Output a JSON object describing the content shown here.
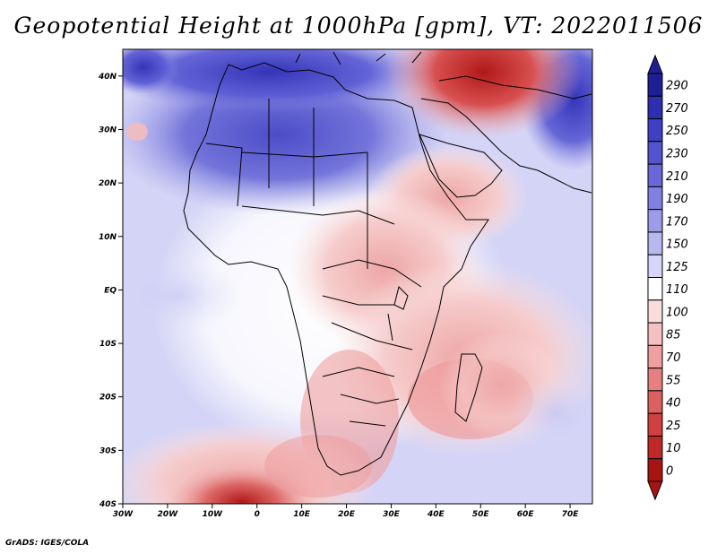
{
  "title": "Geopotential Height at 1000hPa [gpm], VT: 2022011506",
  "credit": "GrADS: IGES/COLA",
  "map": {
    "extent": {
      "lon_min": -30,
      "lon_max": 75,
      "lat_min": -40,
      "lat_max": 45
    },
    "lat_ticks": [
      {
        "value": 40,
        "label": "40N"
      },
      {
        "value": 30,
        "label": "30N"
      },
      {
        "value": 20,
        "label": "20N"
      },
      {
        "value": 10,
        "label": "10N"
      },
      {
        "value": 0,
        "label": "EQ"
      },
      {
        "value": -10,
        "label": "10S"
      },
      {
        "value": -20,
        "label": "20S"
      },
      {
        "value": -30,
        "label": "30S"
      },
      {
        "value": -40,
        "label": "40S"
      }
    ],
    "lon_ticks": [
      {
        "value": -30,
        "label": "30W"
      },
      {
        "value": -20,
        "label": "20W"
      },
      {
        "value": -10,
        "label": "10W"
      },
      {
        "value": 0,
        "label": "0"
      },
      {
        "value": 10,
        "label": "10E"
      },
      {
        "value": 20,
        "label": "20E"
      },
      {
        "value": 30,
        "label": "30E"
      },
      {
        "value": 40,
        "label": "40E"
      },
      {
        "value": 50,
        "label": "50E"
      },
      {
        "value": 60,
        "label": "60E"
      },
      {
        "value": 70,
        "label": "70E"
      }
    ]
  },
  "colorbar": {
    "levels": [
      "290",
      "270",
      "250",
      "230",
      "210",
      "190",
      "170",
      "150",
      "125",
      "110",
      "100",
      "85",
      "70",
      "55",
      "40",
      "25",
      "10",
      "0"
    ],
    "colors": [
      "#1e1e96",
      "#2e2eb0",
      "#4040c4",
      "#5454cf",
      "#6868d8",
      "#8080e0",
      "#9c9ce8",
      "#b8b8f0",
      "#d6d6f8",
      "#ffffff",
      "#fadcdc",
      "#f5c0c0",
      "#eea0a0",
      "#e68080",
      "#dc6060",
      "#d04040",
      "#c02828",
      "#a81414"
    ]
  }
}
